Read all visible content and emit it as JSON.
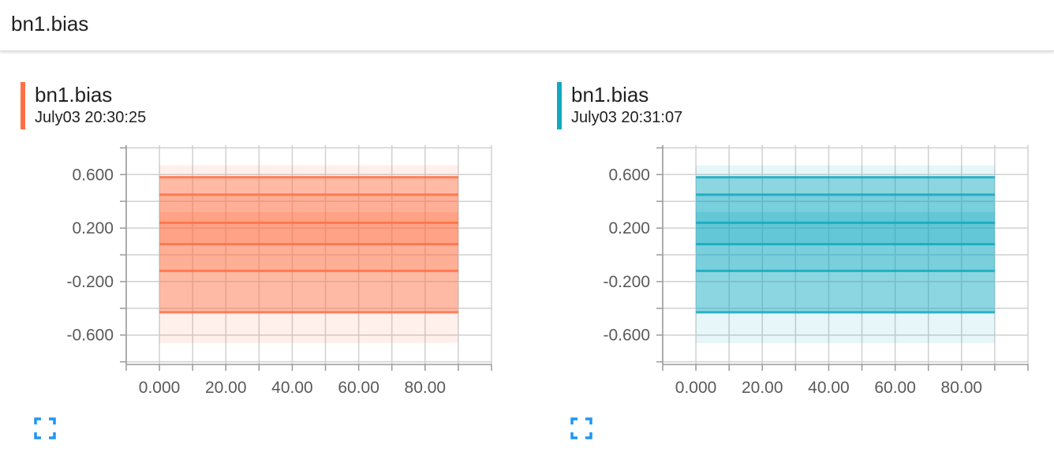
{
  "header": {
    "title": "bn1.bias"
  },
  "cards": [
    {
      "tag": "bn1.bias",
      "run": "July03 20:30:25",
      "color": "#ff7043",
      "expand_icon": "fullscreen-icon"
    },
    {
      "tag": "bn1.bias",
      "run": "July03 20:31:07",
      "color": "#0fa9c0",
      "expand_icon": "fullscreen-icon"
    }
  ],
  "chart_data": [
    {
      "type": "area",
      "x": [
        0,
        90
      ],
      "xlim": [
        -10,
        100
      ],
      "ylim": [
        -0.82,
        0.82
      ],
      "xticks": [
        0,
        20,
        40,
        60,
        80
      ],
      "xtick_labels": [
        "0.000",
        "20.00",
        "40.00",
        "60.00",
        "80.00"
      ],
      "yticks": [
        0.6,
        0.2,
        -0.2,
        -0.6
      ],
      "ytick_labels": [
        "0.600",
        "0.200",
        "-0.200",
        "-0.600"
      ],
      "grid": true,
      "color": "#ff7043",
      "bands": [
        {
          "low": -0.66,
          "high": 0.67,
          "opacity": 0.1
        },
        {
          "low": -0.43,
          "high": 0.58,
          "opacity": 0.42
        },
        {
          "low": -0.12,
          "high": 0.45,
          "opacity": 0.15
        },
        {
          "low": 0.08,
          "high": 0.32,
          "opacity": 0.2
        }
      ],
      "lines": [
        0.58,
        0.45,
        0.24,
        0.08,
        -0.12,
        -0.43
      ]
    },
    {
      "type": "area",
      "x": [
        0,
        90
      ],
      "xlim": [
        -10,
        100
      ],
      "ylim": [
        -0.82,
        0.82
      ],
      "xticks": [
        0,
        20,
        40,
        60,
        80
      ],
      "xtick_labels": [
        "0.000",
        "20.00",
        "40.00",
        "60.00",
        "80.00"
      ],
      "yticks": [
        0.6,
        0.2,
        -0.2,
        -0.6
      ],
      "ytick_labels": [
        "0.600",
        "0.200",
        "-0.200",
        "-0.600"
      ],
      "grid": true,
      "color": "#0fa9c0",
      "bands": [
        {
          "low": -0.66,
          "high": 0.67,
          "opacity": 0.1
        },
        {
          "low": -0.43,
          "high": 0.58,
          "opacity": 0.42
        },
        {
          "low": -0.12,
          "high": 0.45,
          "opacity": 0.15
        },
        {
          "low": 0.08,
          "high": 0.32,
          "opacity": 0.2
        }
      ],
      "lines": [
        0.58,
        0.45,
        0.24,
        0.08,
        -0.12,
        -0.43
      ]
    }
  ]
}
